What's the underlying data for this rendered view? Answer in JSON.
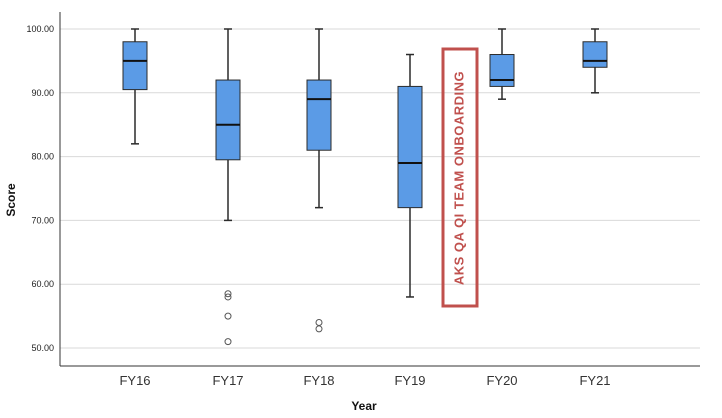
{
  "chart_data": {
    "type": "box",
    "xlabel": "Year",
    "ylabel": "Score",
    "ylim": [
      48,
      104
    ],
    "yticks": [
      "100.00",
      "90.00",
      "80.00",
      "70.00",
      "60.00",
      "50.00"
    ],
    "ytick_values": [
      100,
      90,
      80,
      70,
      60,
      50
    ],
    "grid": true,
    "categories": [
      "FY16",
      "FY17",
      "FY18",
      "FY19",
      "FY20",
      "FY21"
    ],
    "boxes": [
      {
        "category": "FY16",
        "min": 82,
        "q1": 90.5,
        "median": 95,
        "q3": 98,
        "max": 100,
        "outliers": []
      },
      {
        "category": "FY17",
        "min": 70,
        "q1": 79.5,
        "median": 85,
        "q3": 92,
        "max": 100,
        "outliers": [
          58.5,
          58,
          55,
          51
        ]
      },
      {
        "category": "FY18",
        "min": 72,
        "q1": 81,
        "median": 89,
        "q3": 92,
        "max": 100,
        "outliers": [
          54,
          53
        ]
      },
      {
        "category": "FY19",
        "min": 58,
        "q1": 72,
        "median": 79,
        "q3": 91,
        "max": 96,
        "outliers": []
      },
      {
        "category": "FY20",
        "min": 89,
        "q1": 91,
        "median": 92,
        "q3": 96,
        "max": 100,
        "outliers": []
      },
      {
        "category": "FY21",
        "min": 90,
        "q1": 94,
        "median": 95,
        "q3": 98,
        "max": 100,
        "outliers": []
      }
    ],
    "annotation": {
      "text": "AKS QA QI TEAM ONBOARDING"
    },
    "colors": {
      "box_fill": "#5b9be6",
      "box_stroke": "#2b2b2b",
      "grid": "#d9d9d9",
      "annotation": "#c0504d"
    }
  }
}
